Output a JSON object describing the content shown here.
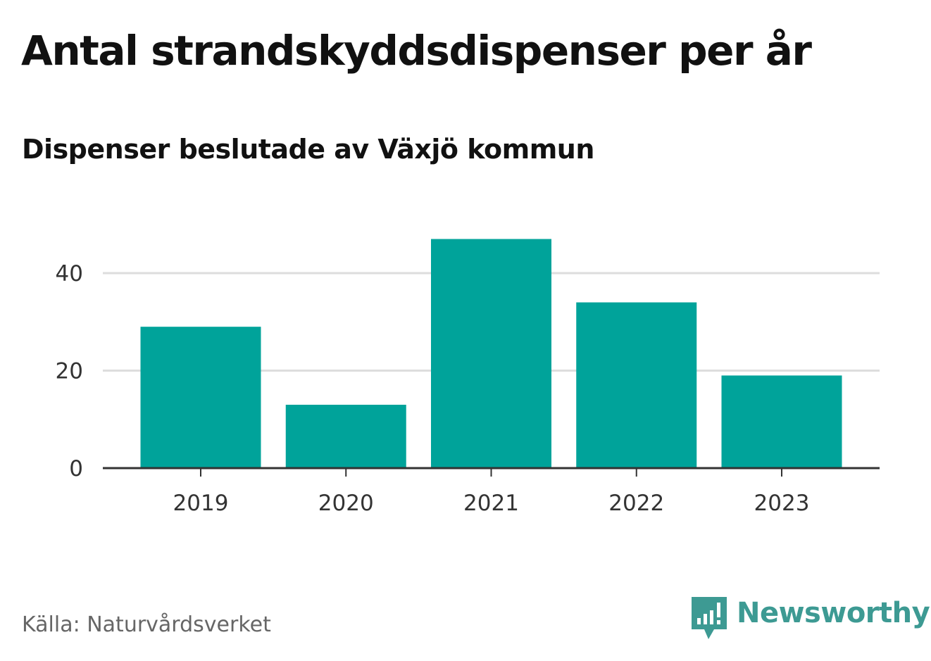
{
  "title": "Antal strandskyddsdispenser per år",
  "subtitle": "Dispenser beslutade av Växjö kommun",
  "source": "Källa: Naturvårdsverket",
  "brand": {
    "name": "Newsworthy",
    "icon": "newsworthy-logo-icon",
    "color": "#3d9a93"
  },
  "chart_data": {
    "type": "bar",
    "categories": [
      "2019",
      "2020",
      "2021",
      "2022",
      "2023"
    ],
    "values": [
      29,
      13,
      47,
      34,
      19
    ],
    "ylim": [
      0,
      50
    ],
    "yticks": [
      0,
      20,
      40
    ],
    "grid": true,
    "bar_color": "#00a39a",
    "title": "Antal strandskyddsdispenser per år",
    "subtitle": "Dispenser beslutade av Växjö kommun",
    "xlabel": "",
    "ylabel": ""
  }
}
